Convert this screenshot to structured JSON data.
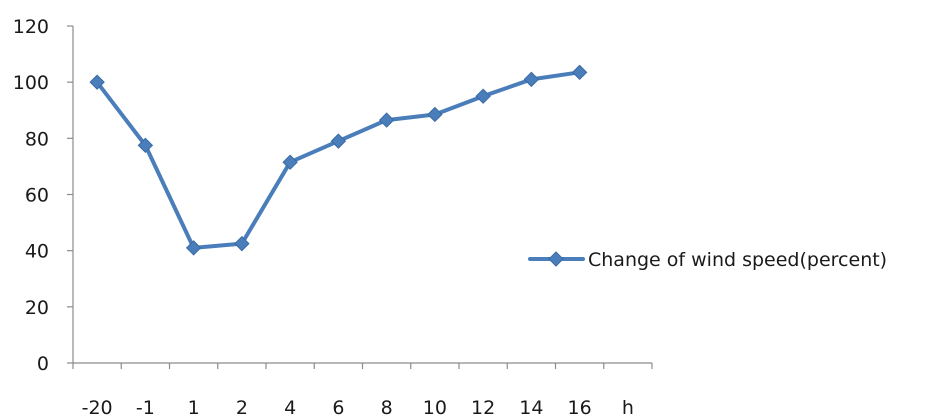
{
  "chart_data": {
    "type": "line",
    "categories": [
      "-20",
      "-1",
      "1",
      "2",
      "4",
      "6",
      "8",
      "10",
      "12",
      "14",
      "16"
    ],
    "x_axis_trailing_label": "h",
    "series": [
      {
        "name": "Change of wind speed(percent)",
        "values": [
          100,
          77.5,
          41,
          42.5,
          71.5,
          79,
          86.5,
          88.5,
          95,
          101,
          103.5
        ]
      }
    ],
    "y_ticks": [
      "0",
      "20",
      "40",
      "60",
      "80",
      "100",
      "120"
    ],
    "ylim": [
      0,
      120
    ],
    "legend_position": "right",
    "grid": false,
    "series_color": "#4a7ebb"
  }
}
